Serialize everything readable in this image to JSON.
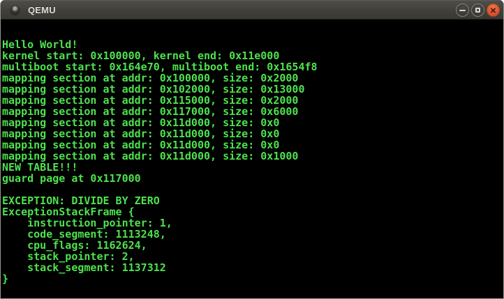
{
  "window": {
    "title": "QEMU",
    "controls": {
      "minimize": "minimize",
      "maximize": "maximize",
      "close": "close"
    }
  },
  "colors": {
    "terminal_foreground": "#4ee24e",
    "terminal_background": "#000000",
    "titlebar": "#403f3a",
    "close_button": "#d64f2c"
  },
  "terminal": {
    "lines": [
      "Hello World!",
      "kernel start: 0x100000, kernel end: 0x11e000",
      "multiboot start: 0x164e70, multiboot end: 0x1654f8",
      "mapping section at addr: 0x100000, size: 0x2000",
      "mapping section at addr: 0x102000, size: 0x13000",
      "mapping section at addr: 0x115000, size: 0x2000",
      "mapping section at addr: 0x117000, size: 0x6000",
      "mapping section at addr: 0x11d000, size: 0x0",
      "mapping section at addr: 0x11d000, size: 0x0",
      "mapping section at addr: 0x11d000, size: 0x0",
      "mapping section at addr: 0x11d000, size: 0x1000",
      "NEW TABLE!!!",
      "guard page at 0x117000",
      "",
      "EXCEPTION: DIVIDE BY ZERO",
      "ExceptionStackFrame {",
      "    instruction_pointer: 1,",
      "    code_segment: 1113248,",
      "    cpu_flags: 1162624,",
      "    stack_pointer: 2,",
      "    stack_segment: 1137312",
      "}"
    ]
  }
}
